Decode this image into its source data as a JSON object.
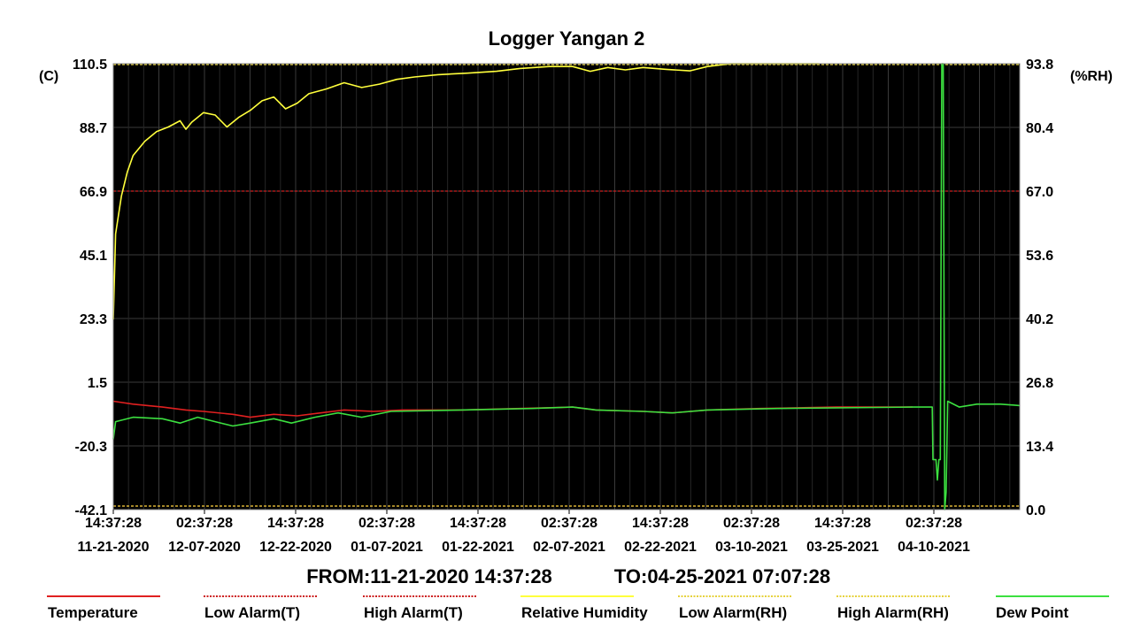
{
  "chart_data": {
    "type": "line",
    "title": "Logger Yangan 2",
    "left_axis": {
      "unit": "(C)",
      "ticks": [
        "110.5",
        "88.7",
        "66.9",
        "45.1",
        "23.3",
        "1.5",
        "-20.3",
        "-42.1"
      ],
      "range": [
        -42.1,
        110.5
      ]
    },
    "right_axis": {
      "unit": "(%RH)",
      "ticks": [
        "93.8",
        "80.4",
        "67.0",
        "53.6",
        "40.2",
        "26.8",
        "13.4",
        "0.0"
      ],
      "range": [
        0.0,
        93.8
      ]
    },
    "x_axis": {
      "range": [
        "11-21-2020 14:37:28",
        "04-25-2021 07:07:28"
      ],
      "ticks": [
        {
          "time": "14:37:28",
          "date": "11-21-2020"
        },
        {
          "time": "02:37:28",
          "date": "12-07-2020"
        },
        {
          "time": "14:37:28",
          "date": "12-22-2020"
        },
        {
          "time": "02:37:28",
          "date": "01-07-2021"
        },
        {
          "time": "14:37:28",
          "date": "01-22-2021"
        },
        {
          "time": "02:37:28",
          "date": "02-07-2021"
        },
        {
          "time": "14:37:28",
          "date": "02-22-2021"
        },
        {
          "time": "02:37:28",
          "date": "03-10-2021"
        },
        {
          "time": "14:37:28",
          "date": "03-25-2021"
        },
        {
          "time": "02:37:28",
          "date": "04-10-2021"
        }
      ]
    },
    "range_text": {
      "from": "FROM:11-21-2020 14:37:28",
      "to": "TO:04-25-2021 07:07:28"
    },
    "grid": true,
    "background": "#000000",
    "alarm_lines": [
      {
        "name": "High Alarm(T)",
        "axis": "left",
        "value": 66.9,
        "color": "#cc1f1f"
      },
      {
        "name": "Low Alarm(T)",
        "axis": "left",
        "value": -42.1,
        "color": "#cc1f1f"
      },
      {
        "name": "High Alarm(RH)",
        "axis": "right",
        "value": 93.8,
        "color": "#e6d23c"
      },
      {
        "name": "Low Alarm(RH)",
        "axis": "right",
        "value": 0.0,
        "color": "#e6d23c"
      }
    ],
    "series": [
      {
        "name": "Relative Humidity",
        "axis": "right",
        "color": "#ffff3c",
        "points": [
          [
            "11-21-2020 14:37:28",
            40.0
          ],
          [
            "11-22-2020",
            58.0
          ],
          [
            "11-23-2020",
            66.0
          ],
          [
            "11-24-2020",
            71.0
          ],
          [
            "11-25-2020",
            74.5
          ],
          [
            "11-27-2020",
            77.5
          ],
          [
            "11-29-2020",
            79.5
          ],
          [
            "12-01-2020",
            80.5
          ],
          [
            "12-03-2020",
            81.8
          ],
          [
            "12-04-2020",
            80.0
          ],
          [
            "12-05-2020",
            81.5
          ],
          [
            "12-07-2020",
            83.5
          ],
          [
            "12-09-2020",
            83.0
          ],
          [
            "12-11-2020",
            80.5
          ],
          [
            "12-13-2020",
            82.5
          ],
          [
            "12-15-2020",
            84.0
          ],
          [
            "12-17-2020",
            86.0
          ],
          [
            "12-19-2020",
            86.8
          ],
          [
            "12-21-2020",
            84.3
          ],
          [
            "12-23-2020",
            85.5
          ],
          [
            "12-25-2020",
            87.5
          ],
          [
            "12-28-2020",
            88.5
          ],
          [
            "12-31-2020",
            89.8
          ],
          [
            "01-03-2021",
            88.8
          ],
          [
            "01-06-2021",
            89.5
          ],
          [
            "01-09-2021",
            90.5
          ],
          [
            "01-12-2021",
            91.0
          ],
          [
            "01-16-2021",
            91.5
          ],
          [
            "01-21-2021",
            91.8
          ],
          [
            "01-26-2021",
            92.2
          ],
          [
            "01-30-2021",
            92.8
          ],
          [
            "02-04-2021",
            93.2
          ],
          [
            "02-08-2021",
            93.2
          ],
          [
            "02-11-2021",
            92.2
          ],
          [
            "02-14-2021",
            93.0
          ],
          [
            "02-17-2021",
            92.5
          ],
          [
            "02-20-2021",
            93.0
          ],
          [
            "02-24-2021",
            92.6
          ],
          [
            "02-28-2021",
            92.3
          ],
          [
            "03-03-2021",
            93.2
          ],
          [
            "03-07-2021",
            93.8
          ],
          [
            "03-22-2021",
            93.8
          ]
        ]
      },
      {
        "name": "Temperature",
        "axis": "left",
        "color": "#e02020",
        "points": [
          [
            "11-21-2020 14:37:28",
            -5.0
          ],
          [
            "11-25-2020",
            -6.0
          ],
          [
            "11-30-2020",
            -7.0
          ],
          [
            "12-04-2020",
            -8.0
          ],
          [
            "12-07-2020",
            -8.5
          ],
          [
            "12-12-2020",
            -9.5
          ],
          [
            "12-15-2020",
            -10.5
          ],
          [
            "12-19-2020",
            -9.5
          ],
          [
            "12-23-2020",
            -10.0
          ],
          [
            "12-27-2020",
            -9.0
          ],
          [
            "12-31-2020",
            -8.0
          ],
          [
            "01-05-2021",
            -8.5
          ],
          [
            "01-10-2021",
            -8.0
          ],
          [
            "01-20-2021",
            -8.0
          ],
          [
            "01-30-2021",
            -7.5
          ],
          [
            "02-08-2021",
            -7.0
          ],
          [
            "02-12-2021",
            -8.0
          ],
          [
            "02-20-2021",
            -8.5
          ],
          [
            "02-25-2021",
            -9.0
          ],
          [
            "03-03-2021",
            -8.0
          ],
          [
            "03-12-2021",
            -7.5
          ],
          [
            "03-25-2021",
            -7.0
          ],
          [
            "04-07-2021",
            -7.0
          ]
        ]
      },
      {
        "name": "Dew Point",
        "axis": "left",
        "color": "#3ce040",
        "points": [
          [
            "11-21-2020 14:37:28",
            -18.0
          ],
          [
            "11-22-2020",
            -12.0
          ],
          [
            "11-25-2020",
            -10.5
          ],
          [
            "11-30-2020",
            -11.0
          ],
          [
            "12-03-2020",
            -12.5
          ],
          [
            "12-06-2020",
            -10.5
          ],
          [
            "12-09-2020",
            -12.0
          ],
          [
            "12-12-2020",
            -13.5
          ],
          [
            "12-15-2020",
            -12.5
          ],
          [
            "12-19-2020",
            -11.0
          ],
          [
            "12-22-2020",
            -12.5
          ],
          [
            "12-26-2020",
            -10.5
          ],
          [
            "12-30-2020",
            -9.0
          ],
          [
            "01-03-2021",
            -10.5
          ],
          [
            "01-08-2021",
            -8.5
          ],
          [
            "01-20-2021",
            -8.0
          ],
          [
            "02-01-2021",
            -7.5
          ],
          [
            "02-08-2021",
            -7.0
          ],
          [
            "02-12-2021",
            -8.0
          ],
          [
            "02-20-2021",
            -8.5
          ],
          [
            "02-25-2021",
            -9.0
          ],
          [
            "03-03-2021",
            -8.0
          ],
          [
            "03-15-2021",
            -7.5
          ],
          [
            "04-07-2021",
            -7.0
          ],
          [
            "04-10-2021 09:00",
            -7.0
          ],
          [
            "04-10-2021 12:00",
            -25.0
          ],
          [
            "04-11-2021 00:00",
            -25.0
          ],
          [
            "04-11-2021 06:00",
            -32.0
          ],
          [
            "04-11-2021 12:00",
            -25.0
          ],
          [
            "04-11-2021 18:00",
            -25.0
          ],
          [
            "04-12-2021 00:00",
            110.5
          ],
          [
            "04-12-2021 06:00",
            110.5
          ],
          [
            "04-12-2021 12:00",
            -42.1
          ],
          [
            "04-12-2021 18:00",
            -36.0
          ],
          [
            "04-13-2021 00:00",
            -5.0
          ],
          [
            "04-15-2021",
            -7.0
          ],
          [
            "04-18-2021",
            -6.0
          ],
          [
            "04-22-2021",
            -6.0
          ],
          [
            "04-25-2021 07:07:28",
            -6.5
          ]
        ]
      }
    ],
    "legend": [
      {
        "label": "Temperature",
        "color": "#e02020",
        "style": "solid"
      },
      {
        "label": "Low Alarm(T)",
        "color": "#cc1f1f",
        "style": "dashed"
      },
      {
        "label": "High Alarm(T)",
        "color": "#cc1f1f",
        "style": "dashed"
      },
      {
        "label": "Relative Humidity",
        "color": "#ffff3c",
        "style": "solid"
      },
      {
        "label": "Low Alarm(RH)",
        "color": "#e6d23c",
        "style": "dashed"
      },
      {
        "label": "High Alarm(RH)",
        "color": "#e6d23c",
        "style": "dashed"
      },
      {
        "label": "Dew Point",
        "color": "#3ce040",
        "style": "solid"
      }
    ],
    "legend_position": "bottom"
  }
}
